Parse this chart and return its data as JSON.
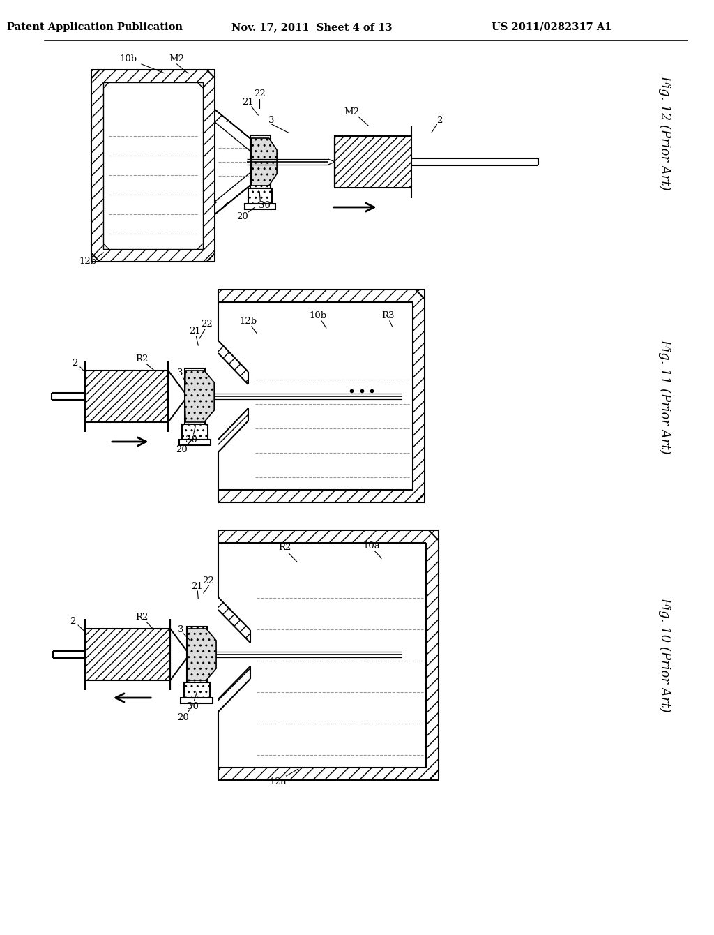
{
  "header_left": "Patent Application Publication",
  "header_mid": "Nov. 17, 2011  Sheet 4 of 13",
  "header_right": "US 2011/0282317 A1",
  "bg_color": "#ffffff"
}
